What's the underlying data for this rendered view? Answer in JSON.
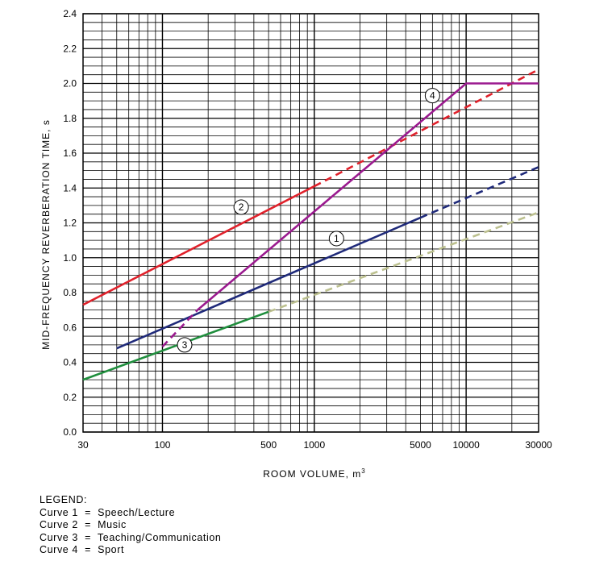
{
  "chart_data": {
    "type": "line",
    "xlabel": "ROOM VOLUME, m",
    "xlabel_sup": "3",
    "ylabel": "MID-FREQUENCY REVERBERATION TIME, s",
    "xscale": "log",
    "xlim": [
      30,
      30000
    ],
    "ylim": [
      0,
      2.4
    ],
    "grid": true,
    "x_ticks": [
      {
        "value": 30,
        "label": "30"
      },
      {
        "value": 100,
        "label": "100"
      },
      {
        "value": 500,
        "label": "500"
      },
      {
        "value": 1000,
        "label": "1000"
      },
      {
        "value": 5000,
        "label": "5000"
      },
      {
        "value": 10000,
        "label": "10000"
      },
      {
        "value": 30000,
        "label": "30000"
      }
    ],
    "y_ticks": [
      {
        "value": 0,
        "label": "0.0"
      },
      {
        "value": 0.2,
        "label": "0.2"
      },
      {
        "value": 0.4,
        "label": "0.4"
      },
      {
        "value": 0.6,
        "label": "0.6"
      },
      {
        "value": 0.8,
        "label": "0.8"
      },
      {
        "value": 1.0,
        "label": "1.0"
      },
      {
        "value": 1.2,
        "label": "1.2"
      },
      {
        "value": 1.4,
        "label": "1.4"
      },
      {
        "value": 1.6,
        "label": "1.6"
      },
      {
        "value": 1.8,
        "label": "1.8"
      },
      {
        "value": 2.0,
        "label": "2.0"
      },
      {
        "value": 2.2,
        "label": "2.2"
      },
      {
        "value": 2.4,
        "label": "2.4"
      }
    ],
    "series": [
      {
        "id": "1",
        "color": "#1f2a7a",
        "solid": [
          [
            50,
            0.48
          ],
          [
            5000,
            1.23
          ]
        ],
        "dashed": [
          [
            5000,
            1.23
          ],
          [
            30000,
            1.52
          ]
        ],
        "label_at": [
          1400,
          1.11
        ]
      },
      {
        "id": "2",
        "color": "#e0212b",
        "solid": [
          [
            30,
            0.73
          ],
          [
            1000,
            1.41
          ]
        ],
        "dashed": [
          [
            1000,
            1.41
          ],
          [
            30000,
            2.08
          ]
        ],
        "label_at": [
          330,
          1.29
        ]
      },
      {
        "id": "3",
        "color": "#1f8e3d",
        "solid": [
          [
            30,
            0.3
          ],
          [
            500,
            0.69
          ]
        ],
        "faded_color": "#bcc08f",
        "dashed": [
          [
            500,
            0.69
          ],
          [
            30000,
            1.26
          ]
        ],
        "label_at": [
          140,
          0.5
        ]
      },
      {
        "id": "4",
        "color": "#9b1a8f",
        "dashed": [
          [
            100,
            0.49
          ],
          [
            170,
            0.7
          ]
        ],
        "solid": [
          [
            170,
            0.7
          ],
          [
            10000,
            2.0
          ],
          [
            30000,
            2.0
          ]
        ],
        "label_at": [
          6000,
          1.93
        ]
      }
    ]
  },
  "legend": {
    "heading": "LEGEND:",
    "items": [
      "Curve 1  =  Speech/Lecture",
      "Curve 2  =  Music",
      "Curve 3  =  Teaching/Communication",
      "Curve 4  =  Sport"
    ]
  }
}
